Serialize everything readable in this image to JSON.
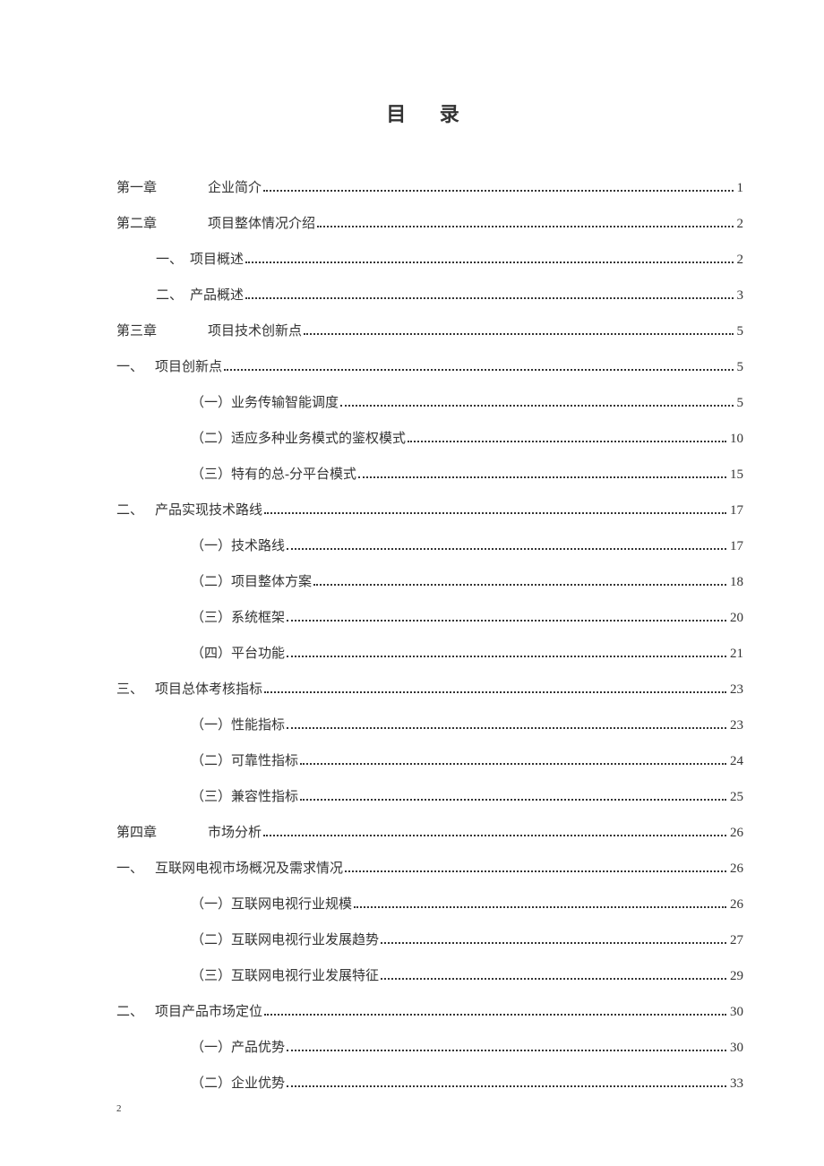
{
  "title": "目 录",
  "page_number": "2",
  "colors": {
    "background": "#ffffff",
    "text": "#333333",
    "dots": "#333333"
  },
  "typography": {
    "title_fontsize": 22,
    "entry_fontsize": 15,
    "font_family": "SimSun"
  },
  "entries": [
    {
      "indent": "indent-0",
      "prefix": "第一章",
      "label": "企业简介",
      "page": "1"
    },
    {
      "indent": "indent-0",
      "prefix": "第二章",
      "label": "项目整体情况介绍",
      "page": "2"
    },
    {
      "indent": "indent-1",
      "prefix": "一、",
      "label": "项目概述",
      "page": "2"
    },
    {
      "indent": "indent-1",
      "prefix": "二、",
      "label": "产品概述",
      "page": "3"
    },
    {
      "indent": "indent-0",
      "prefix": "第三章",
      "label": "项目技术创新点",
      "page": "5"
    },
    {
      "indent": "indent-1b",
      "prefix": "一、",
      "label": "项目创新点",
      "page": "5"
    },
    {
      "indent": "indent-2",
      "prefix": "",
      "label": "（一）业务传输智能调度",
      "page": "5"
    },
    {
      "indent": "indent-2",
      "prefix": "",
      "label": "（二）适应多种业务模式的鉴权模式",
      "page": "10"
    },
    {
      "indent": "indent-2",
      "prefix": "",
      "label": "（三）特有的总-分平台模式",
      "page": "15"
    },
    {
      "indent": "indent-1b",
      "prefix": "二、",
      "label": "产品实现技术路线",
      "page": "17"
    },
    {
      "indent": "indent-2",
      "prefix": "",
      "label": "（一）技术路线",
      "page": "17"
    },
    {
      "indent": "indent-2",
      "prefix": "",
      "label": "（二）项目整体方案",
      "page": "18"
    },
    {
      "indent": "indent-2",
      "prefix": "",
      "label": "（三）系统框架",
      "page": "20"
    },
    {
      "indent": "indent-2",
      "prefix": "",
      "label": "（四）平台功能",
      "page": "21"
    },
    {
      "indent": "indent-1b",
      "prefix": "三、",
      "label": "项目总体考核指标",
      "page": "23"
    },
    {
      "indent": "indent-2",
      "prefix": "",
      "label": "（一）性能指标",
      "page": "23"
    },
    {
      "indent": "indent-2",
      "prefix": "",
      "label": "（二）可靠性指标",
      "page": "24"
    },
    {
      "indent": "indent-2",
      "prefix": "",
      "label": "（三）兼容性指标",
      "page": "25"
    },
    {
      "indent": "indent-0",
      "prefix": "第四章",
      "label": "市场分析",
      "page": "26"
    },
    {
      "indent": "indent-1b",
      "prefix": "一、",
      "label": "互联网电视市场概况及需求情况",
      "page": "26"
    },
    {
      "indent": "indent-2",
      "prefix": "",
      "label": "（一）互联网电视行业规模",
      "page": "26"
    },
    {
      "indent": "indent-2",
      "prefix": "",
      "label": "（二）互联网电视行业发展趋势",
      "page": "27"
    },
    {
      "indent": "indent-2",
      "prefix": "",
      "label": "（三）互联网电视行业发展特征",
      "page": "29"
    },
    {
      "indent": "indent-1b",
      "prefix": "二、",
      "label": "项目产品市场定位",
      "page": "30"
    },
    {
      "indent": "indent-2",
      "prefix": "",
      "label": "（一）产品优势",
      "page": "30"
    },
    {
      "indent": "indent-2",
      "prefix": "",
      "label": "（二）企业优势",
      "page": "33"
    }
  ]
}
